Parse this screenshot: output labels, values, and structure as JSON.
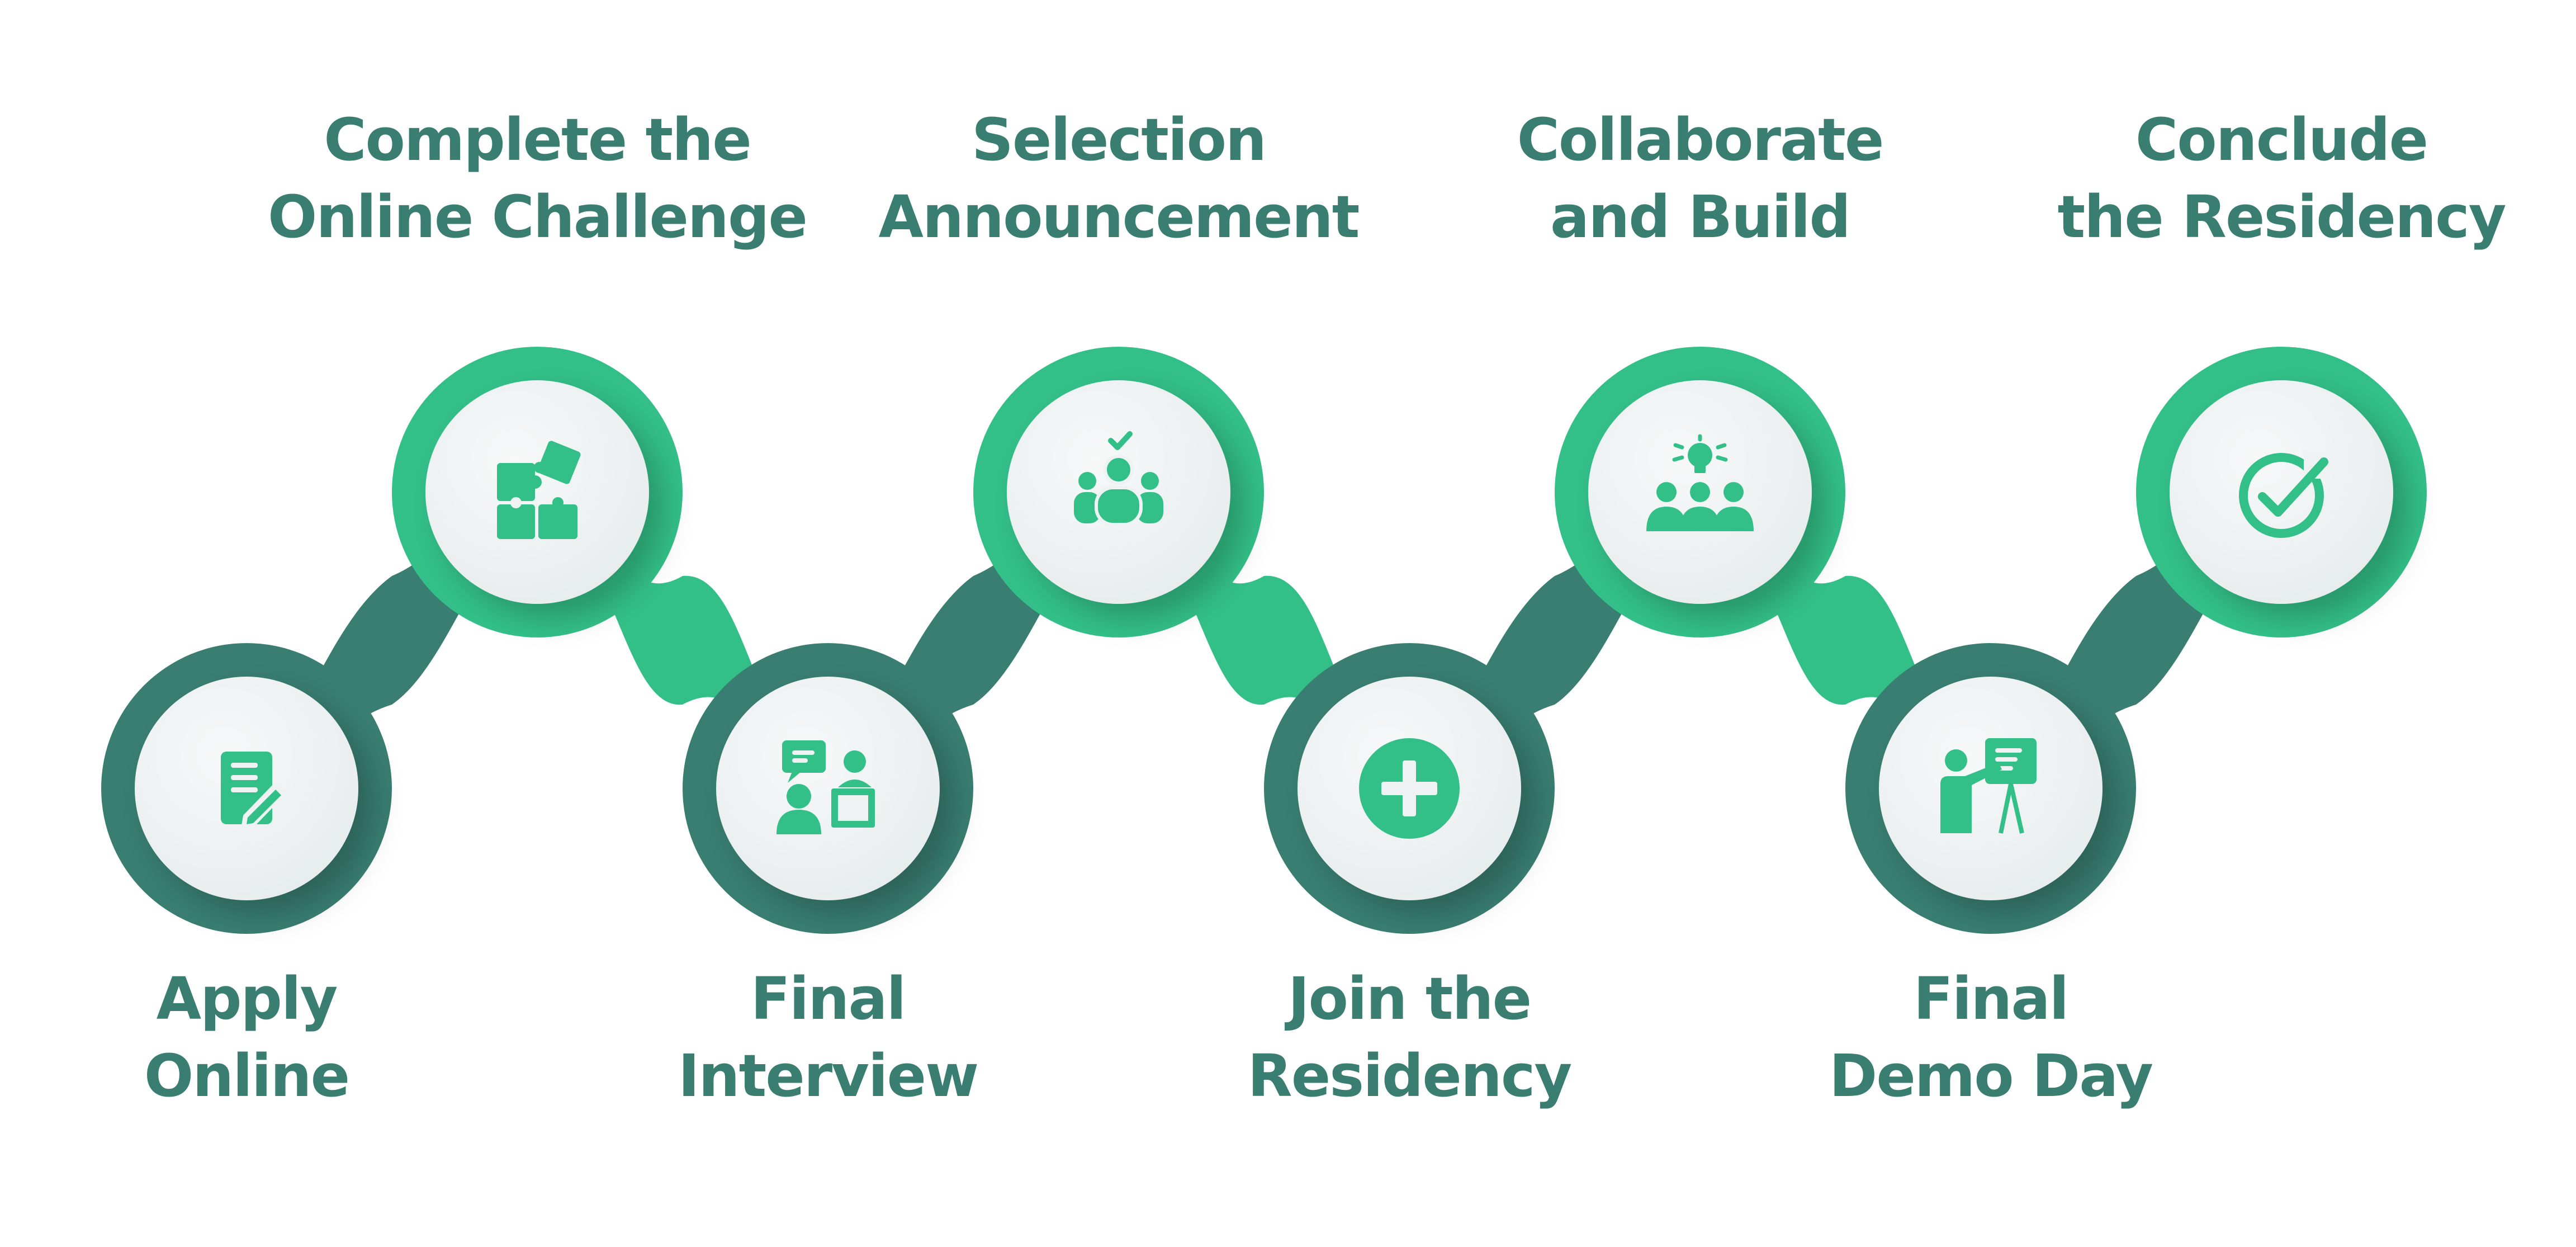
{
  "colors": {
    "background": "#ffffff",
    "dark_green": "#397e71",
    "bright_green": "#33c088",
    "circle_face": "#eef2f2",
    "icon": "#33c088",
    "label_text": "#397e71"
  },
  "steps": [
    {
      "label_line1": "Apply",
      "label_line2": "Online",
      "icon": "document-pencil-icon"
    },
    {
      "label_line1": "Complete the",
      "label_line2": "Online Challenge",
      "icon": "puzzle-icon"
    },
    {
      "label_line1": "Final",
      "label_line2": "Interview",
      "icon": "interview-icon"
    },
    {
      "label_line1": "Selection",
      "label_line2": "Announcement",
      "icon": "group-check-icon"
    },
    {
      "label_line1": "Join the",
      "label_line2": "Residency",
      "icon": "plus-circle-icon"
    },
    {
      "label_line1": "Collaborate",
      "label_line2": "and Build",
      "icon": "team-idea-icon"
    },
    {
      "label_line1": "Final",
      "label_line2": "Demo Day",
      "icon": "presentation-icon"
    },
    {
      "label_line1": "Conclude",
      "label_line2": "the Residency",
      "icon": "check-circle-icon"
    }
  ]
}
